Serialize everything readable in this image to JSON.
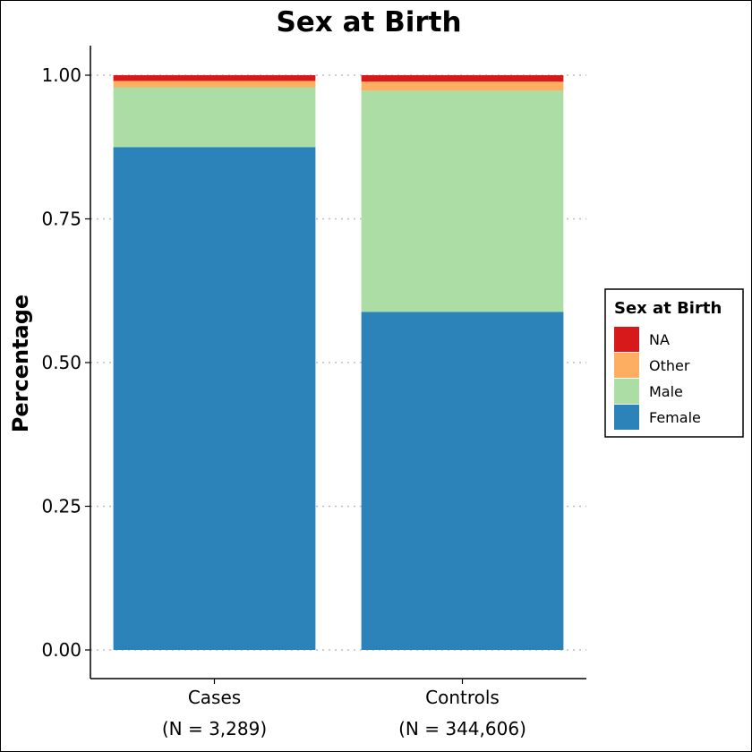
{
  "chart_data": {
    "type": "bar",
    "stacked": true,
    "title": "Sex at Birth",
    "xlabel": "",
    "ylabel": "Percentage",
    "ylim": [
      0,
      1
    ],
    "yticks": [
      "0.00",
      "0.25",
      "0.50",
      "0.75",
      "1.00"
    ],
    "categories": [
      {
        "name": "Cases",
        "n_label": "(N = 3,289)"
      },
      {
        "name": "Controls",
        "n_label": "(N = 344,606)"
      }
    ],
    "series": [
      {
        "name": "Female",
        "color": "#2b83ba",
        "values": [
          0.875,
          0.588
        ]
      },
      {
        "name": "Male",
        "color": "#abdda4",
        "values": [
          0.104,
          0.385
        ]
      },
      {
        "name": "Other",
        "color": "#fdae61",
        "values": [
          0.011,
          0.016
        ]
      },
      {
        "name": "NA",
        "color": "#d7191c",
        "values": [
          0.01,
          0.011
        ]
      }
    ],
    "legend": {
      "title": "Sex at Birth",
      "placement": "right",
      "order": [
        "NA",
        "Other",
        "Male",
        "Female"
      ]
    },
    "grid": "horizontal-dotted"
  }
}
